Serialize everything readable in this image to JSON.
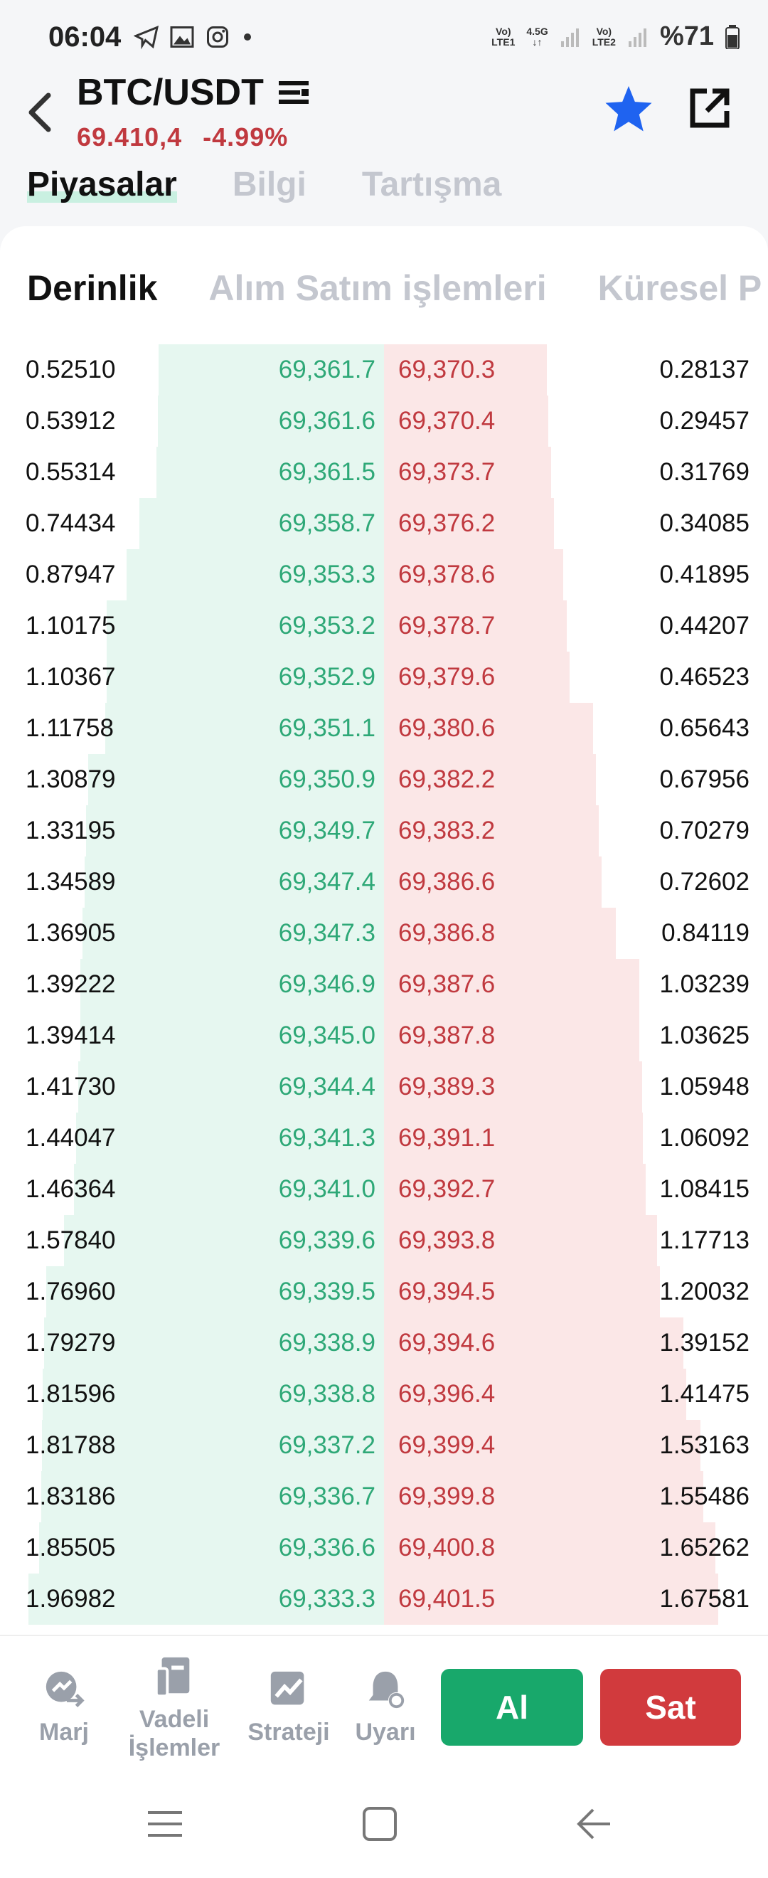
{
  "status": {
    "time": "06:04",
    "net1_top": "Vo)",
    "net1_mid": "4.5G",
    "net1_bot": "LTE1",
    "net2_top": "Vo)",
    "net2_bot": "LTE2",
    "battery": "%71"
  },
  "header": {
    "pair": "BTC/USDT",
    "price": "69.410,4",
    "change": "-4.99%"
  },
  "tabs": [
    "Piyasalar",
    "Bilgi",
    "Tartışma"
  ],
  "subtabs": [
    "Derinlik",
    "Alım Satım işlemleri",
    "Küresel P"
  ],
  "orderbook": {
    "bid_qty": [
      "0.52510",
      "0.53912",
      "0.55314",
      "0.74434",
      "0.87947",
      "1.10175",
      "1.10367",
      "1.11758",
      "1.30879",
      "1.33195",
      "1.34589",
      "1.36905",
      "1.39222",
      "1.39414",
      "1.41730",
      "1.44047",
      "1.46364",
      "1.57840",
      "1.76960",
      "1.79279",
      "1.81596",
      "1.81788",
      "1.83186",
      "1.85505",
      "1.96982"
    ],
    "bid_price": [
      "69,361.7",
      "69,361.6",
      "69,361.5",
      "69,358.7",
      "69,353.3",
      "69,353.2",
      "69,352.9",
      "69,351.1",
      "69,350.9",
      "69,349.7",
      "69,347.4",
      "69,347.3",
      "69,346.9",
      "69,345.0",
      "69,344.4",
      "69,341.3",
      "69,341.0",
      "69,339.6",
      "69,339.5",
      "69,338.9",
      "69,338.8",
      "69,337.2",
      "69,336.7",
      "69,336.6",
      "69,333.3"
    ],
    "ask_price": [
      "69,370.3",
      "69,370.4",
      "69,373.7",
      "69,376.2",
      "69,378.6",
      "69,378.7",
      "69,379.6",
      "69,380.6",
      "69,382.2",
      "69,383.2",
      "69,386.6",
      "69,386.8",
      "69,387.6",
      "69,387.8",
      "69,389.3",
      "69,391.1",
      "69,392.7",
      "69,393.8",
      "69,394.5",
      "69,394.6",
      "69,396.4",
      "69,399.4",
      "69,399.8",
      "69,400.8",
      "69,401.5"
    ],
    "ask_qty": [
      "0.28137",
      "0.29457",
      "0.31769",
      "0.34085",
      "0.41895",
      "0.44207",
      "0.46523",
      "0.65643",
      "0.67956",
      "0.70279",
      "0.72602",
      "0.84119",
      "1.03239",
      "1.03625",
      "1.05948",
      "1.06092",
      "1.08415",
      "1.17713",
      "1.20032",
      "1.39152",
      "1.41475",
      "1.53163",
      "1.55486",
      "1.65262",
      "1.67581"
    ]
  },
  "bottom": {
    "marj": "Marj",
    "vadeli_1": "Vadeli",
    "vadeli_2": "İşlemler",
    "strateji": "Strateji",
    "uyari": "Uyarı",
    "buy": "Al",
    "sell": "Sat"
  },
  "colors": {
    "bid": "#2ea877",
    "ask": "#c0393f",
    "bid_bg": "#e6f7f0",
    "ask_bg": "#fbe7e7",
    "buy_btn": "#18a86b",
    "sell_btn": "#d13a3d"
  }
}
